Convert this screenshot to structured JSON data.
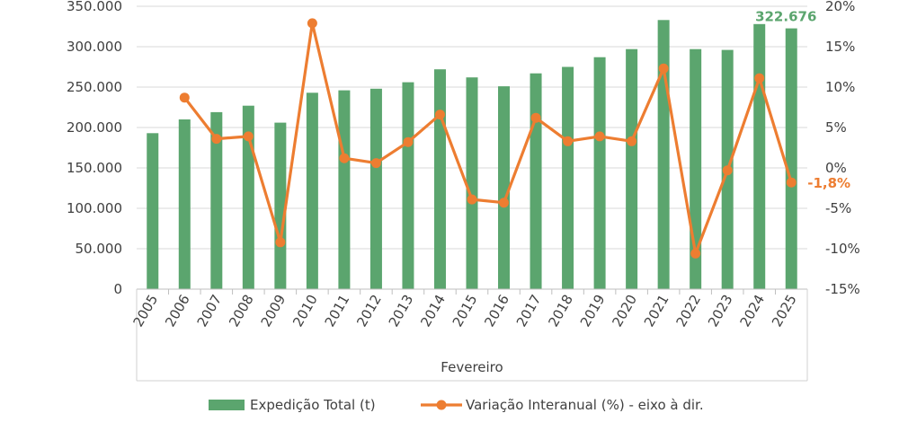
{
  "chart_data": {
    "type": "bar",
    "categories": [
      "2005",
      "2006",
      "2007",
      "2008",
      "2009",
      "2010",
      "2011",
      "2012",
      "2013",
      "2014",
      "2015",
      "2016",
      "2017",
      "2018",
      "2019",
      "2020",
      "2021",
      "2022",
      "2023",
      "2024",
      "2025"
    ],
    "xlabel": "Fevereiro",
    "ylim_left": [
      0,
      350000
    ],
    "ylim_right": [
      -15,
      20
    ],
    "left_ticks": [
      "0",
      "50.000",
      "100.000",
      "150.000",
      "200.000",
      "250.000",
      "300.000",
      "350.000"
    ],
    "right_ticks": [
      "-15%",
      "-10%",
      "-5%",
      "0%",
      "5%",
      "10%",
      "15%",
      "20%"
    ],
    "grid": true,
    "legend_position": "bottom",
    "series": [
      {
        "name": "Expedição Total (t)",
        "type": "bar",
        "axis": "left",
        "color": "#5BA56E",
        "values": [
          193000,
          210000,
          219000,
          227000,
          206000,
          243000,
          246000,
          248000,
          256000,
          272000,
          262000,
          251000,
          267000,
          275000,
          287000,
          297000,
          333000,
          297000,
          296000,
          328000,
          322676
        ]
      },
      {
        "name": "Variação Interanual (%) - eixo à dir.",
        "type": "line",
        "axis": "right",
        "color": "#ED7D31",
        "values": [
          null,
          8.7,
          3.6,
          3.9,
          -9.2,
          17.9,
          1.2,
          0.6,
          3.2,
          6.6,
          -3.9,
          -4.3,
          6.2,
          3.3,
          3.9,
          3.3,
          12.3,
          -10.6,
          -0.3,
          11.1,
          -1.8
        ]
      }
    ],
    "annotations": [
      {
        "text": "322.676",
        "series": 0,
        "index": 20,
        "color": "#5BA56E"
      },
      {
        "text": "-1,8%",
        "series": 1,
        "index": 20,
        "color": "#ED7D31"
      }
    ]
  }
}
